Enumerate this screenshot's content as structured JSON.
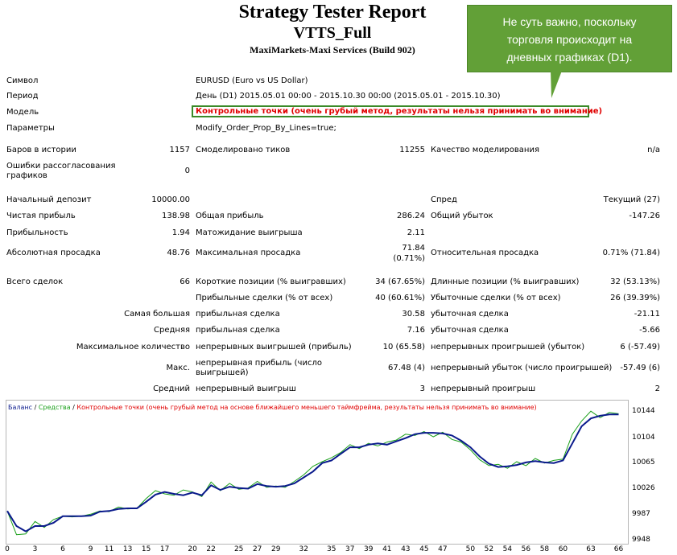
{
  "header": {
    "title": "Strategy Tester Report",
    "expert": "VTTS_Full",
    "broker": "MaxiMarkets-Maxi Services (Build 902)"
  },
  "callout": {
    "line1": "Не суть важно, поскольку",
    "line2": "торговля происходит на",
    "line3": "дневных графиках (D1)."
  },
  "info": {
    "symbol_label": "Символ",
    "symbol_value": "EURUSD (Euro vs US Dollar)",
    "period_label": "Период",
    "period_value": "День (D1) 2015.05.01 00:00 - 2015.10.30 00:00 (2015.05.01 - 2015.10.30)",
    "model_label": "Модель",
    "model_value": "Контрольные точки (очень грубый метод, результаты нельзя принимать во внимание)",
    "params_label": "Параметры",
    "params_value": "Modify_Order_Prop_By_Lines=true;"
  },
  "stats": {
    "bars_label": "Баров в истории",
    "bars_value": "1157",
    "ticks_label": "Смоделировано тиков",
    "ticks_value": "11255",
    "quality_label": "Качество моделирования",
    "quality_value": "n/a",
    "errors_label_1": "Ошибки рассогласования",
    "errors_label_2": "графиков",
    "errors_value": "0",
    "deposit_label": "Начальный депозит",
    "deposit_value": "10000.00",
    "spread_label": "Спред",
    "spread_value": "Текущий (27)",
    "net_label": "Чистая прибыль",
    "net_value": "138.98",
    "gross_profit_label": "Общая прибыль",
    "gross_profit_value": "286.24",
    "gross_loss_label": "Общий убыток",
    "gross_loss_value": "-147.26",
    "pf_label": "Прибыльность",
    "pf_value": "1.94",
    "payoff_label": "Матожидание выигрыша",
    "payoff_value": "2.11",
    "abs_dd_label": "Абсолютная просадка",
    "abs_dd_value": "48.76",
    "max_dd_label": "Максимальная просадка",
    "max_dd_value_1": "71.84",
    "max_dd_value_2": "(0.71%)",
    "rel_dd_label": "Относительная просадка",
    "rel_dd_value": "0.71% (71.84)",
    "trades_label": "Всего сделок",
    "trades_value": "66",
    "short_label": "Короткие позиции (% выигравших)",
    "short_value": "34 (67.65%)",
    "long_label": "Длинные позиции (% выигравших)",
    "long_value": "32 (53.13%)",
    "profit_trades_label": "Прибыльные сделки (% от всех)",
    "profit_trades_value": "40 (60.61%)",
    "loss_trades_label": "Убыточные сделки (% от всех)",
    "loss_trades_value": "26 (39.39%)",
    "largest_label": "Самая большая",
    "largest_profit_label": "прибыльная сделка",
    "largest_profit_value": "30.58",
    "largest_loss_label": "убыточная сделка",
    "largest_loss_value": "-21.11",
    "average_label": "Средняя",
    "average_profit_label": "прибыльная сделка",
    "average_profit_value": "7.16",
    "average_loss_label": "убыточная сделка",
    "average_loss_value": "-5.66",
    "maxcount_label": "Максимальное количество",
    "maxcount_win_label": "непрерывных выигрышей (прибыль)",
    "maxcount_win_value": "10 (65.58)",
    "maxcount_loss_label": "непрерывных проигрышей (убыток)",
    "maxcount_loss_value": "6 (-57.49)",
    "max_label": "Макс.",
    "max_profit_label_1": "непрерывная прибыль (число",
    "max_profit_label_2": "выигрышей)",
    "max_profit_value": "67.48 (4)",
    "max_loss_label": "непрерывный убыток (число проигрышей)",
    "max_loss_value": "-57.49 (6)",
    "avg_label": "Средний",
    "avg_win_label": "непрерывный выигрыш",
    "avg_win_value": "3",
    "avg_loss_label": "непрерывный проигрыш",
    "avg_loss_value": "2"
  },
  "chart_data": {
    "type": "line",
    "legend": {
      "balance": "Баланс",
      "sep1": " / ",
      "equity": "Средства",
      "sep2": " / ",
      "model": "Контрольные точки (очень грубый метод на основе ближайшего меньшего таймфрейма, результаты нельзя принимать во внимание)"
    },
    "colors": {
      "balance": "#0a1a8c",
      "equity": "#1aa01a",
      "model": "#e00000"
    },
    "ylim": [
      9948,
      10160
    ],
    "xlim": [
      0,
      67
    ],
    "y_ticks": [
      "10144",
      "10104",
      "10065",
      "10026",
      "9987",
      "9948"
    ],
    "x_ticks": [
      "0",
      "3",
      "6",
      "9",
      "11",
      "13",
      "15",
      "17",
      "20",
      "22",
      "25",
      "27",
      "29",
      "32",
      "35",
      "37",
      "39",
      "41",
      "43",
      "45",
      "47",
      "50",
      "52",
      "54",
      "56",
      "58",
      "60",
      "63",
      "66"
    ],
    "series": [
      {
        "name": "Баланс",
        "x": [
          0,
          1,
          2,
          3,
          4,
          5,
          6,
          7,
          8,
          9,
          10,
          11,
          12,
          13,
          14,
          15,
          16,
          17,
          18,
          19,
          20,
          21,
          22,
          23,
          24,
          25,
          26,
          27,
          28,
          29,
          30,
          31,
          32,
          33,
          34,
          35,
          36,
          37,
          38,
          39,
          40,
          41,
          42,
          43,
          44,
          45,
          46,
          47,
          48,
          49,
          50,
          51,
          52,
          53,
          54,
          55,
          56,
          57,
          58,
          59,
          60,
          61,
          62,
          63,
          64,
          65,
          66
        ],
        "values": [
          9993,
          9970,
          9962,
          9970,
          9970,
          9975,
          9985,
          9985,
          9985,
          9986,
          9992,
          9993,
          9996,
          9997,
          9997,
          10007,
          10018,
          10022,
          10019,
          10017,
          10021,
          10017,
          10032,
          10025,
          10030,
          10028,
          10027,
          10034,
          10031,
          10030,
          10031,
          10035,
          10044,
          10053,
          10066,
          10070,
          10080,
          10090,
          10090,
          10094,
          10096,
          10094,
          10099,
          10104,
          10110,
          10112,
          10112,
          10111,
          10108,
          10100,
          10090,
          10076,
          10065,
          10060,
          10061,
          10063,
          10067,
          10069,
          10067,
          10066,
          10070,
          10096,
          10122,
          10134,
          10138,
          10140,
          10140
        ]
      },
      {
        "name": "Средства",
        "x": [
          0,
          1,
          2,
          3,
          4,
          5,
          6,
          7,
          8,
          9,
          10,
          11,
          12,
          13,
          14,
          15,
          16,
          17,
          18,
          19,
          20,
          21,
          22,
          23,
          24,
          25,
          26,
          27,
          28,
          29,
          30,
          31,
          32,
          33,
          34,
          35,
          36,
          37,
          38,
          39,
          40,
          41,
          42,
          43,
          44,
          45,
          46,
          47,
          48,
          49,
          50,
          51,
          52,
          53,
          54,
          55,
          56,
          57,
          58,
          59,
          60,
          61,
          62,
          63,
          64,
          65,
          66
        ],
        "values": [
          9993,
          9957,
          9958,
          9977,
          9968,
          9980,
          9985,
          9984,
          9985,
          9988,
          9993,
          9992,
          9999,
          9996,
          9997,
          10012,
          10024,
          10019,
          10017,
          10025,
          10022,
          10015,
          10037,
          10024,
          10035,
          10026,
          10028,
          10038,
          10029,
          10031,
          10029,
          10038,
          10048,
          10061,
          10068,
          10074,
          10082,
          10094,
          10088,
          10096,
          10092,
          10098,
          10101,
          10110,
          10108,
          10114,
          10106,
          10113,
          10102,
          10098,
          10086,
          10071,
          10062,
          10064,
          10058,
          10068,
          10062,
          10073,
          10066,
          10070,
          10072,
          10110,
          10130,
          10145,
          10135,
          10143,
          10141
        ]
      }
    ]
  }
}
